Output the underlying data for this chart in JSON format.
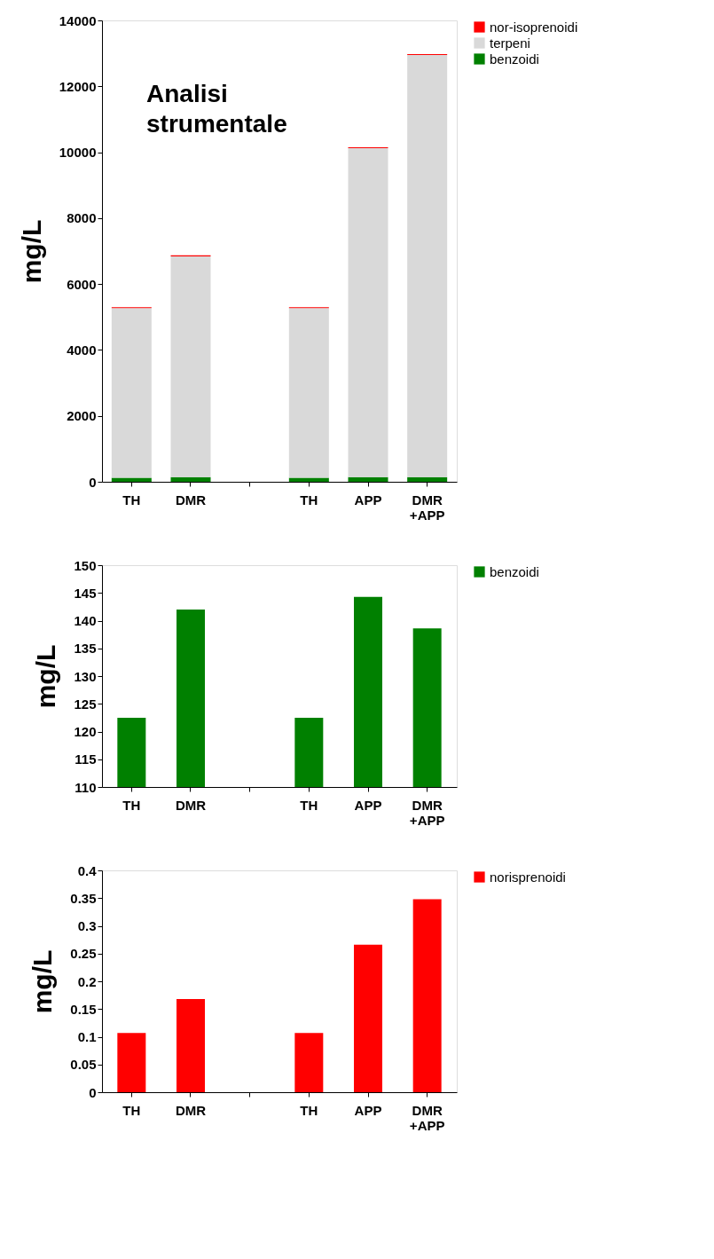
{
  "chart_data": [
    {
      "type": "bar",
      "stacked": true,
      "ylabel": "mg/L",
      "annotations": [
        "Analisi strumentale"
      ],
      "categories": [
        "TH",
        "DMR",
        null,
        "TH",
        "APP",
        "DMR +APP"
      ],
      "series": [
        {
          "name": "benzoidi",
          "color": "#008000",
          "values": [
            120,
            140,
            null,
            120,
            140,
            140
          ]
        },
        {
          "name": "terpeni",
          "color": "#d9d9d9",
          "values": [
            5150,
            6700,
            null,
            5150,
            9980,
            12810
          ]
        },
        {
          "name": "nor-isoprenoidi",
          "color": "#ff0000",
          "values": [
            30,
            30,
            null,
            30,
            30,
            30
          ]
        }
      ],
      "ylim": [
        0,
        14000
      ],
      "yticks": [
        0,
        2000,
        4000,
        6000,
        8000,
        10000,
        12000,
        14000
      ],
      "grid": false,
      "legend": "right"
    },
    {
      "type": "bar",
      "ylabel": "mg/L",
      "categories": [
        "TH",
        "DMR",
        null,
        "TH",
        "APP",
        "DMR +APP"
      ],
      "series": [
        {
          "name": "benzoidi",
          "color": "#008000",
          "values": [
            122.5,
            142,
            null,
            122.5,
            144.3,
            138.6
          ]
        }
      ],
      "ylim": [
        110,
        150
      ],
      "yticks": [
        110,
        115,
        120,
        125,
        130,
        135,
        140,
        145,
        150
      ],
      "grid": false,
      "legend": "right"
    },
    {
      "type": "bar",
      "ylabel": "mg/L",
      "categories": [
        "TH",
        "DMR",
        null,
        "TH",
        "APP",
        "DMR +APP"
      ],
      "series": [
        {
          "name": "norisprenoidi",
          "color": "#ff0000",
          "values": [
            0.107,
            0.168,
            null,
            0.107,
            0.266,
            0.348
          ]
        }
      ],
      "ylim": [
        0,
        0.4
      ],
      "yticks": [
        0,
        0.05,
        0.1,
        0.15,
        0.2,
        0.25,
        0.3,
        0.35,
        0.4
      ],
      "grid": false,
      "legend": "right"
    }
  ]
}
